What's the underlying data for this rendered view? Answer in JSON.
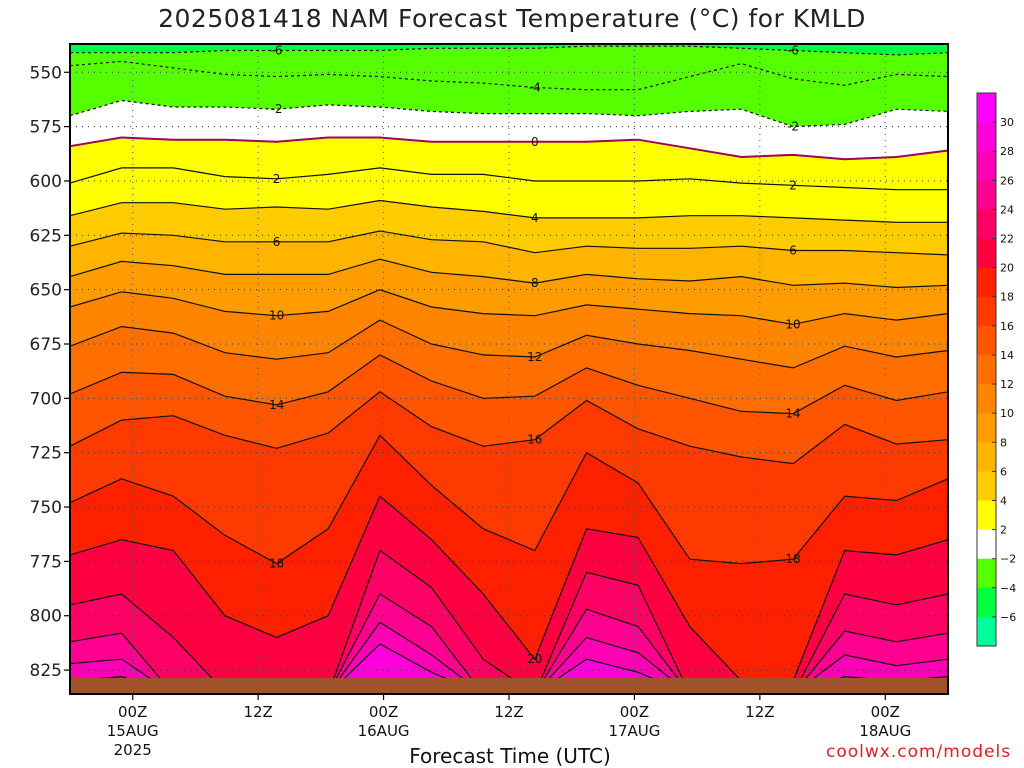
{
  "chart_data": {
    "type": "heatmap",
    "title": "2025081418 NAM Forecast Temperature (°C) for KMLD",
    "xlabel": "Forecast Time (UTC)",
    "ylabel": "",
    "credit": "coolwx.com/models",
    "x_ticks": [
      {
        "time": "00Z",
        "date": "15AUG",
        "year": "2025"
      },
      {
        "time": "12Z",
        "date": "",
        "year": ""
      },
      {
        "time": "00Z",
        "date": "16AUG",
        "year": ""
      },
      {
        "time": "12Z",
        "date": "",
        "year": ""
      },
      {
        "time": "00Z",
        "date": "17AUG",
        "year": ""
      },
      {
        "time": "12Z",
        "date": "",
        "year": ""
      },
      {
        "time": "00Z",
        "date": "18AUG",
        "year": ""
      }
    ],
    "y_ticks": [
      "550",
      "575",
      "600",
      "625",
      "650",
      "675",
      "700",
      "725",
      "750",
      "775",
      "800",
      "825"
    ],
    "ylim": [
      537,
      836
    ],
    "xlim": [
      "2025-08-14 18Z",
      "2025-08-18 06Z"
    ],
    "colorbar": {
      "labels": [
        "30",
        "28",
        "26",
        "24",
        "22",
        "20",
        "18",
        "16",
        "14",
        "12",
        "10",
        "8",
        "6",
        "4",
        "2",
        "−2",
        "−4",
        "−6"
      ],
      "colors": [
        "#ff00ff",
        "#ff00dc",
        "#ff00b4",
        "#ff0090",
        "#ff0064",
        "#ff0040",
        "#ff2000",
        "#ff3a00",
        "#ff5500",
        "#ff6e00",
        "#ff8500",
        "#ff9c00",
        "#ffb400",
        "#ffcc00",
        "#ffff00",
        "#ffffff",
        "#55ff00",
        "#00ff40",
        "#00ff99"
      ]
    },
    "temperature_levels": [
      {
        "label": "-6",
        "pressure": [
          541,
          541,
          541,
          540,
          540,
          540,
          540,
          539,
          539,
          539,
          538,
          538,
          538,
          539,
          540,
          541,
          542,
          541
        ]
      },
      {
        "label": "-4",
        "pressure": [
          547,
          545,
          548,
          551,
          552,
          551,
          552,
          554,
          555,
          557,
          558,
          558,
          552,
          546,
          553,
          556,
          551,
          552
        ]
      },
      {
        "label": "-2",
        "pressure": [
          570,
          563,
          566,
          566,
          567,
          565,
          566,
          568,
          569,
          569,
          569,
          570,
          568,
          567,
          575,
          574,
          567,
          568
        ]
      },
      {
        "label": "0",
        "pressure": [
          584,
          580,
          581,
          581,
          582,
          580,
          580,
          582,
          582,
          582,
          582,
          581,
          585,
          589,
          588,
          590,
          589,
          586
        ]
      },
      {
        "label": "2",
        "pressure": [
          601,
          594,
          594,
          598,
          599,
          597,
          594,
          597,
          597,
          600,
          600,
          600,
          599,
          601,
          602,
          603,
          604,
          604
        ]
      },
      {
        "label": "4",
        "pressure": [
          616,
          610,
          610,
          613,
          612,
          613,
          609,
          612,
          614,
          617,
          617,
          617,
          616,
          616,
          617,
          618,
          619,
          619
        ]
      },
      {
        "label": "6",
        "pressure": [
          630,
          624,
          625,
          628,
          628,
          628,
          623,
          627,
          628,
          633,
          630,
          631,
          631,
          630,
          632,
          632,
          633,
          634
        ]
      },
      {
        "label": "8",
        "pressure": [
          644,
          637,
          639,
          643,
          643,
          643,
          636,
          642,
          644,
          647,
          643,
          645,
          646,
          644,
          648,
          647,
          649,
          648
        ]
      },
      {
        "label": "10",
        "pressure": [
          658,
          651,
          654,
          660,
          662,
          660,
          650,
          658,
          661,
          662,
          657,
          659,
          661,
          662,
          666,
          661,
          664,
          661
        ]
      },
      {
        "label": "12",
        "pressure": [
          676,
          667,
          670,
          679,
          682,
          679,
          664,
          675,
          680,
          681,
          671,
          675,
          678,
          682,
          686,
          676,
          681,
          678
        ]
      },
      {
        "label": "14",
        "pressure": [
          698,
          688,
          689,
          699,
          703,
          697,
          680,
          692,
          700,
          699,
          686,
          694,
          700,
          706,
          707,
          694,
          701,
          697
        ]
      },
      {
        "label": "16",
        "pressure": [
          722,
          710,
          708,
          717,
          723,
          716,
          697,
          713,
          722,
          719,
          701,
          714,
          722,
          727,
          730,
          712,
          721,
          719
        ]
      },
      {
        "label": "18",
        "pressure": [
          748,
          737,
          745,
          763,
          776,
          760,
          717,
          740,
          760,
          770,
          725,
          739,
          774,
          776,
          774,
          745,
          747,
          737
        ]
      },
      {
        "label": "20",
        "pressure": [
          772,
          765,
          770,
          800,
          810,
          800,
          745,
          765,
          790,
          820,
          760,
          764,
          805,
          830,
          830,
          770,
          772,
          765
        ]
      },
      {
        "label": "22",
        "pressure": [
          795,
          790,
          810,
          835,
          836,
          836,
          770,
          787,
          820,
          836,
          780,
          786,
          836,
          836,
          836,
          790,
          795,
          790
        ]
      },
      {
        "label": "24",
        "pressure": [
          812,
          808,
          836,
          836,
          836,
          836,
          790,
          805,
          836,
          836,
          797,
          805,
          836,
          836,
          836,
          807,
          812,
          808
        ]
      },
      {
        "label": "26",
        "pressure": [
          822,
          820,
          836,
          836,
          836,
          836,
          803,
          818,
          836,
          836,
          810,
          817,
          836,
          836,
          836,
          818,
          823,
          820
        ]
      },
      {
        "label": "28",
        "pressure": [
          830,
          828,
          836,
          836,
          836,
          836,
          813,
          826,
          836,
          836,
          820,
          826,
          836,
          836,
          836,
          828,
          830,
          828
        ]
      }
    ]
  }
}
